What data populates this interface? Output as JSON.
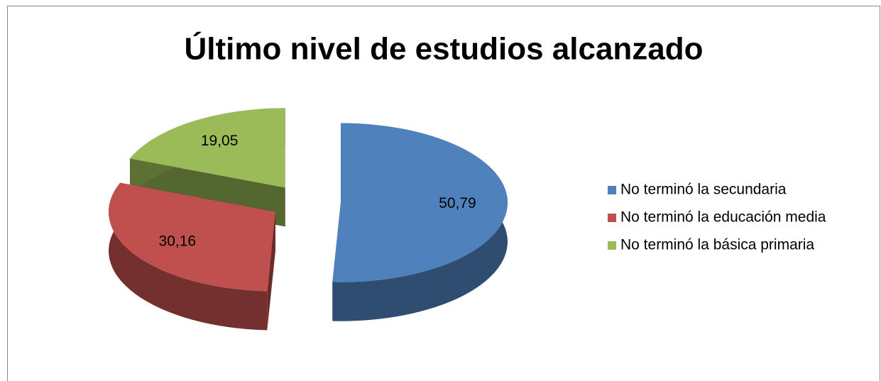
{
  "chart_data": {
    "type": "pie",
    "title": "Último nivel de estudios alcanzado",
    "categories": [
      "No terminó la secundaria",
      "No terminó la educación media",
      "No terminó la básica primaria"
    ],
    "values": [
      50.79,
      30.16,
      19.05
    ],
    "value_labels": [
      "50,79",
      "30,16",
      "19,05"
    ],
    "colors": [
      "#4f81bd",
      "#c0504d",
      "#9bbb59"
    ],
    "legend": "right"
  }
}
